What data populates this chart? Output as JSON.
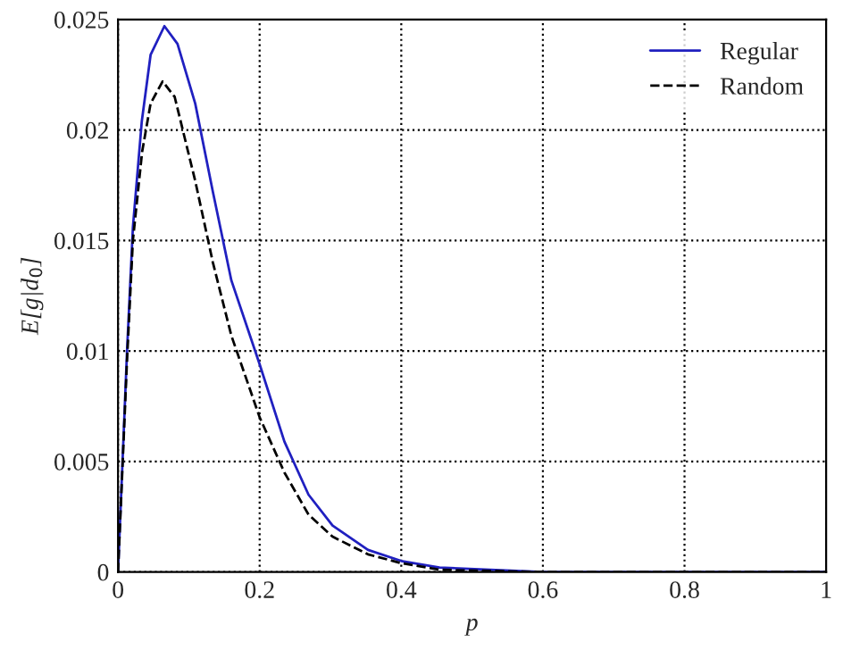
{
  "chart_data": {
    "type": "line",
    "xlabel": "p",
    "ylabel": "E[g|d$_{0}$]",
    "xlim": [
      0,
      1
    ],
    "ylim": [
      0,
      0.025
    ],
    "xticks": [
      0,
      0.2,
      0.4,
      0.6,
      0.8,
      1
    ],
    "yticks": [
      0,
      0.005,
      0.01,
      0.015,
      0.02,
      0.025
    ],
    "grid": true,
    "legend": "top right",
    "series": [
      {
        "name": "Regular",
        "color": "#2020c0",
        "line_style": "solid",
        "x": [
          0,
          0.0126,
          0.021,
          0.0336,
          0.046,
          0.0655,
          0.084,
          0.109,
          0.134,
          0.16,
          0.2,
          0.235,
          0.269,
          0.303,
          0.353,
          0.4,
          0.454,
          0.6,
          0.8,
          1
        ],
        "values": [
          0,
          0.0099,
          0.0156,
          0.0204,
          0.0234,
          0.0247,
          0.0239,
          0.0212,
          0.0172,
          0.0132,
          0.0094,
          0.0059,
          0.0035,
          0.0021,
          0.001,
          0.0005,
          0.0002,
          0,
          0,
          0
        ]
      },
      {
        "name": "Random",
        "color": "#000000",
        "line_style": "dashed",
        "x": [
          0,
          0.0126,
          0.021,
          0.034,
          0.046,
          0.063,
          0.08,
          0.109,
          0.134,
          0.16,
          0.2,
          0.235,
          0.269,
          0.303,
          0.353,
          0.4,
          0.454,
          0.6,
          0.8,
          1
        ],
        "values": [
          0,
          0.0095,
          0.015,
          0.019,
          0.0212,
          0.0222,
          0.0215,
          0.0177,
          0.014,
          0.0107,
          0.007,
          0.0045,
          0.0026,
          0.0016,
          0.0008,
          0.0004,
          0.0001,
          0,
          0,
          0
        ]
      }
    ]
  }
}
